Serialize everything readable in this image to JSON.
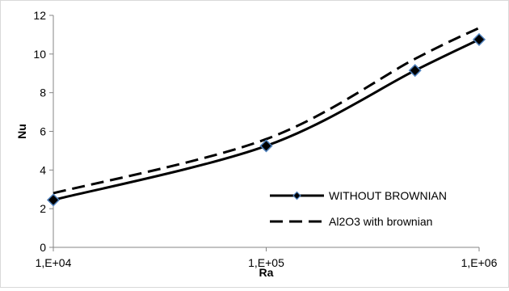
{
  "chart_data": {
    "type": "line",
    "xlabel": "Ra",
    "ylabel": "Nu",
    "x_scale": "log",
    "xlim": [
      10000,
      1000000
    ],
    "ylim": [
      0,
      12
    ],
    "x_ticks": [
      10000,
      100000,
      1000000
    ],
    "x_tick_labels": [
      "1,E+04",
      "1,E+05",
      "1,E+06"
    ],
    "y_ticks": [
      0,
      2,
      4,
      6,
      8,
      10,
      12
    ],
    "y_tick_labels": [
      "0",
      "2",
      "4",
      "6",
      "8",
      "10",
      "12"
    ],
    "grid": false,
    "legend_position": "bottom-right",
    "series": [
      {
        "name": "WITHOUT BROWNIAN",
        "color": "#000000",
        "dash": "solid",
        "marker": "diamond",
        "marker_fill": "#000000",
        "marker_edge": "#4f81bd",
        "x": [
          10000,
          100000,
          500000,
          1000000
        ],
        "y": [
          2.45,
          5.25,
          9.15,
          10.75
        ]
      },
      {
        "name": "Al2O3 with brownian",
        "color": "#000000",
        "dash": "dashed",
        "marker": "none",
        "x": [
          10000,
          100000,
          500000,
          1000000
        ],
        "y": [
          2.8,
          5.6,
          9.75,
          11.35
        ]
      }
    ]
  }
}
